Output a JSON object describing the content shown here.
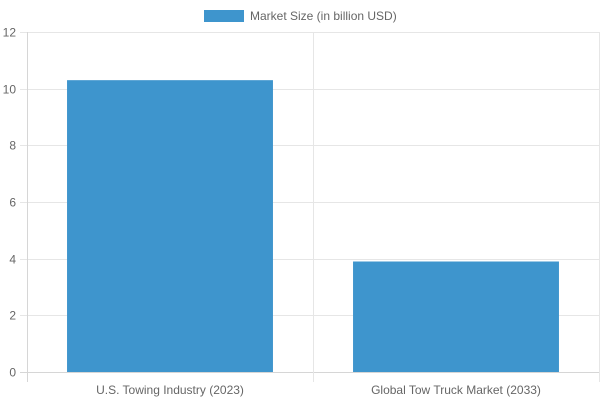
{
  "chart_data": {
    "type": "bar",
    "categories": [
      "U.S. Towing Industry (2023)",
      "Global Tow Truck Market (2033)"
    ],
    "series": [
      {
        "name": "Market Size (in billion USD)",
        "values": [
          10.3,
          3.9
        ],
        "color": "#3e95cd"
      }
    ],
    "title": "",
    "xlabel": "",
    "ylabel": "",
    "ylim": [
      0,
      12
    ],
    "yticks": [
      0,
      2,
      4,
      6,
      8,
      10,
      12
    ],
    "grid": true,
    "legend_position": "top"
  },
  "colors": {
    "grid": "#e6e6e6",
    "axis": "#d6d6d6",
    "text": "#666666"
  }
}
